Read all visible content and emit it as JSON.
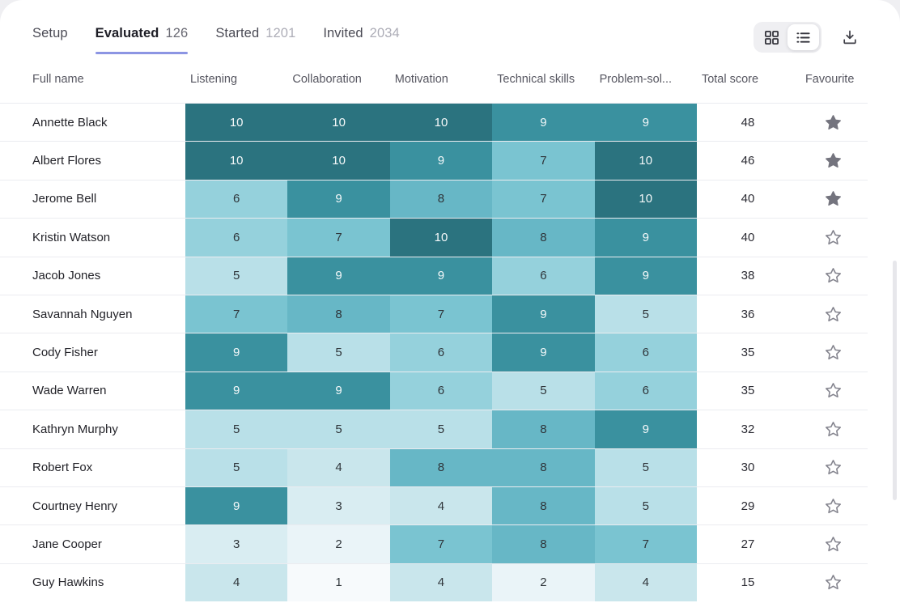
{
  "tabs": {
    "items": [
      {
        "label": "Setup",
        "count": "",
        "active": false
      },
      {
        "label": "Evaluated",
        "count": "126",
        "active": true
      },
      {
        "label": "Started",
        "count": "1201",
        "active": false
      },
      {
        "label": "Invited",
        "count": "2034",
        "active": false
      }
    ],
    "active_underline_color": "#8C95E3"
  },
  "view_controls": {
    "grid_view_icon": "grid-view-icon",
    "list_view_icon": "list-view-icon",
    "active_view": "list",
    "download_icon": "download-icon"
  },
  "table": {
    "columns": [
      "Full name",
      "Listening",
      "Collaboration",
      "Motivation",
      "Technical skills",
      "Problem-sol...",
      "Total score",
      "Favourite"
    ],
    "rows": [
      {
        "name": "Annette Black",
        "scores": [
          10,
          10,
          10,
          9,
          9
        ],
        "total": "48",
        "favourite": true
      },
      {
        "name": "Albert Flores",
        "scores": [
          10,
          10,
          9,
          7,
          10
        ],
        "total": "46",
        "favourite": true
      },
      {
        "name": "Jerome Bell",
        "scores": [
          6,
          9,
          8,
          7,
          10
        ],
        "total": "40",
        "favourite": true
      },
      {
        "name": "Kristin Watson",
        "scores": [
          6,
          7,
          10,
          8,
          9
        ],
        "total": "40",
        "favourite": false
      },
      {
        "name": "Jacob Jones",
        "scores": [
          5,
          9,
          9,
          6,
          9
        ],
        "total": "38",
        "favourite": false
      },
      {
        "name": "Savannah Nguyen",
        "scores": [
          7,
          8,
          7,
          9,
          5
        ],
        "total": "36",
        "favourite": false
      },
      {
        "name": "Cody Fisher",
        "scores": [
          9,
          5,
          6,
          9,
          6
        ],
        "total": "35",
        "favourite": false
      },
      {
        "name": "Wade Warren",
        "scores": [
          9,
          9,
          6,
          5,
          6
        ],
        "total": "35",
        "favourite": false
      },
      {
        "name": "Kathryn Murphy",
        "scores": [
          5,
          5,
          5,
          8,
          9
        ],
        "total": "32",
        "favourite": false
      },
      {
        "name": "Robert Fox",
        "scores": [
          5,
          4,
          8,
          8,
          5
        ],
        "total": "30",
        "favourite": false
      },
      {
        "name": "Courtney Henry",
        "scores": [
          9,
          3,
          4,
          8,
          5
        ],
        "total": "29",
        "favourite": false
      },
      {
        "name": "Jane Cooper",
        "scores": [
          3,
          2,
          7,
          8,
          7
        ],
        "total": "27",
        "favourite": false
      },
      {
        "name": "Guy Hawkins",
        "scores": [
          4,
          1,
          4,
          2,
          4
        ],
        "total": "15",
        "favourite": false
      }
    ]
  },
  "heatmap": {
    "1": {
      "bg": "#F7FAFC",
      "fg": "#2F353A"
    },
    "2": {
      "bg": "#EAF4F8",
      "fg": "#2F353A"
    },
    "3": {
      "bg": "#D9EDF2",
      "fg": "#2F353A"
    },
    "4": {
      "bg": "#C9E6EC",
      "fg": "#2F353A"
    },
    "5": {
      "bg": "#B9E0E8",
      "fg": "#2F353A"
    },
    "6": {
      "bg": "#95D1DC",
      "fg": "#2F353A"
    },
    "7": {
      "bg": "#7AC4D1",
      "fg": "#2F353A"
    },
    "8": {
      "bg": "#67B7C6",
      "fg": "#2F353A"
    },
    "9": {
      "bg": "#3A919F",
      "fg": "#F4F8F9"
    },
    "10": {
      "bg": "#2B737F",
      "fg": "#F4F8F9"
    }
  },
  "star": {
    "filled_color": "#74747E",
    "outline_color": "#84848E"
  }
}
